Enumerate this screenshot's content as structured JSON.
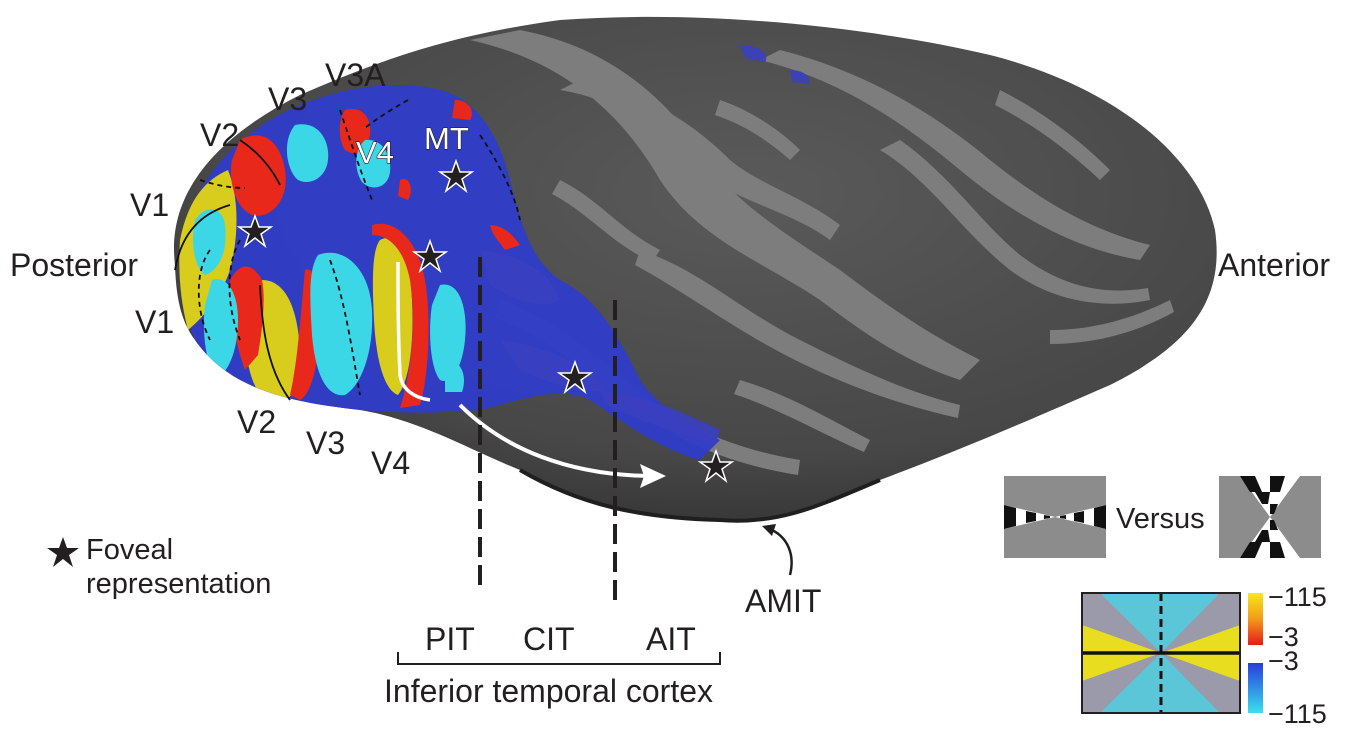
{
  "orientation": {
    "posterior": "Posterior",
    "anterior": "Anterior"
  },
  "areas": {
    "v1_top": "V1",
    "v1_bottom": "V1",
    "v2_top": "V2",
    "v2_bottom": "V2",
    "v3_top": "V3",
    "v3_bottom": "V3",
    "v3a": "V3A",
    "v4_top": "V4",
    "v4_bottom": "V4",
    "mt": "MT",
    "amit": "AMIT"
  },
  "it_regions": {
    "pit": "PIT",
    "cit": "CIT",
    "ait": "AIT",
    "group_label": "Inferior temporal cortex"
  },
  "legend": {
    "star_line1": "Foveal representation",
    "star_line1a": "Foveal",
    "star_line1b": "representation"
  },
  "stimulus": {
    "versus": "Versus"
  },
  "colorbar": {
    "warm_top": "−115",
    "warm_bottom": "−3",
    "cool_top": "−3",
    "cool_bottom": "−115"
  },
  "colors": {
    "brain_dark": "#4a4a4a",
    "brain_light": "#808080",
    "warm": "#ff2a10",
    "yellow": "#f2e21a",
    "blue": "#2d3fd6",
    "cyan": "#38d8e8"
  }
}
